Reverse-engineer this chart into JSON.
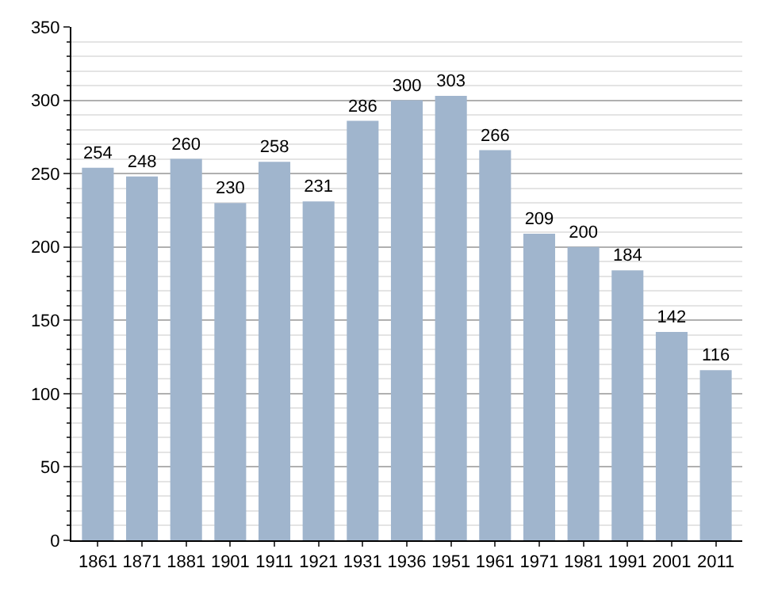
{
  "chart_data": {
    "type": "bar",
    "categories": [
      "1861",
      "1871",
      "1881",
      "1901",
      "1911",
      "1921",
      "1931",
      "1936",
      "1951",
      "1961",
      "1971",
      "1981",
      "1991",
      "2001",
      "2011"
    ],
    "values": [
      254,
      248,
      260,
      230,
      258,
      231,
      286,
      300,
      303,
      266,
      209,
      200,
      184,
      142,
      116
    ],
    "color": "#a0b5cd",
    "data_labels": true,
    "ylim": [
      0,
      350
    ],
    "yticks": [
      0,
      {
        "value": 10,
        "label": null
      },
      {
        "value": 20,
        "label": null
      },
      {
        "value": 30,
        "label": null
      },
      {
        "value": 40,
        "label": null
      },
      50,
      {
        "value": 60,
        "label": null
      },
      {
        "value": 70,
        "label": null
      },
      {
        "value": 80,
        "label": null
      },
      {
        "value": 90,
        "label": null
      },
      100,
      {
        "value": 110,
        "label": null
      },
      {
        "value": 120,
        "label": null
      },
      {
        "value": 130,
        "label": null
      },
      {
        "value": 140,
        "label": null
      },
      150,
      {
        "value": 160,
        "label": null
      },
      {
        "value": 170,
        "label": null
      },
      {
        "value": 180,
        "label": null
      },
      {
        "value": 190,
        "label": null
      },
      200,
      {
        "value": 210,
        "label": null
      },
      {
        "value": 220,
        "label": null
      },
      {
        "value": 230,
        "label": null
      },
      {
        "value": 240,
        "label": null
      },
      250,
      {
        "value": 260,
        "label": null
      },
      {
        "value": 270,
        "label": null
      },
      {
        "value": 280,
        "label": null
      },
      {
        "value": 290,
        "label": null
      },
      300,
      {
        "value": 310,
        "label": null
      },
      {
        "value": 320,
        "label": null
      },
      {
        "value": 330,
        "label": null
      },
      {
        "value": 340,
        "label": null
      },
      350
    ],
    "grid": "y"
  }
}
